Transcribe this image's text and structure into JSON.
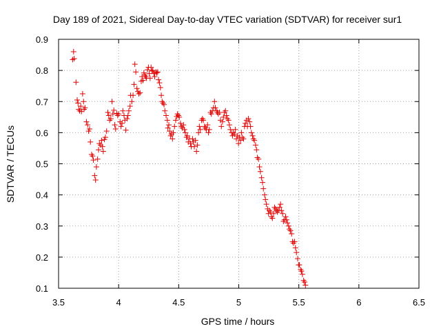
{
  "chart_data": {
    "type": "scatter",
    "title": "Day 189 of 2021, Sidereal Day-to-day VTEC variation (SDTVAR) for receiver sur1",
    "xlabel": "GPS time / hours",
    "ylabel": "SDTVAR / TECUs",
    "xlim": [
      3.5,
      6.5
    ],
    "ylim": [
      0.1,
      0.9
    ],
    "xticks": [
      3.5,
      4,
      4.5,
      5,
      5.5,
      6,
      6.5
    ],
    "yticks": [
      0.1,
      0.2,
      0.3,
      0.4,
      0.5,
      0.6,
      0.7,
      0.8,
      0.9
    ],
    "xtick_labels": [
      "3.5",
      "4",
      "4.5",
      "5",
      "5.5",
      "6",
      "6.5"
    ],
    "ytick_labels": [
      "0.1",
      "0.2",
      "0.3",
      "0.4",
      "0.5",
      "0.6",
      "0.7",
      "0.8",
      "0.9"
    ],
    "grid": true,
    "marker": "+",
    "color": "#e00000",
    "series": [
      {
        "name": "SDTVAR",
        "points": [
          [
            3.617,
            0.835
          ],
          [
            3.625,
            0.86
          ],
          [
            3.63,
            0.838
          ],
          [
            3.645,
            0.762
          ],
          [
            3.655,
            0.705
          ],
          [
            3.662,
            0.695
          ],
          [
            3.668,
            0.675
          ],
          [
            3.675,
            0.67
          ],
          [
            3.685,
            0.685
          ],
          [
            3.69,
            0.668
          ],
          [
            3.7,
            0.725
          ],
          [
            3.708,
            0.7
          ],
          [
            3.712,
            0.675
          ],
          [
            3.72,
            0.68
          ],
          [
            3.732,
            0.635
          ],
          [
            3.742,
            0.625
          ],
          [
            3.75,
            0.605
          ],
          [
            3.758,
            0.612
          ],
          [
            3.765,
            0.57
          ],
          [
            3.775,
            0.53
          ],
          [
            3.783,
            0.525
          ],
          [
            3.79,
            0.512
          ],
          [
            3.8,
            0.462
          ],
          [
            3.808,
            0.448
          ],
          [
            3.815,
            0.49
          ],
          [
            3.825,
            0.515
          ],
          [
            3.833,
            0.545
          ],
          [
            3.84,
            0.565
          ],
          [
            3.85,
            0.56
          ],
          [
            3.858,
            0.575
          ],
          [
            3.865,
            0.555
          ],
          [
            3.872,
            0.54
          ],
          [
            3.882,
            0.578
          ],
          [
            3.89,
            0.585
          ],
          [
            3.9,
            0.605
          ],
          [
            3.91,
            0.665
          ],
          [
            3.918,
            0.655
          ],
          [
            3.925,
            0.64
          ],
          [
            3.935,
            0.645
          ],
          [
            3.945,
            0.7
          ],
          [
            3.952,
            0.66
          ],
          [
            3.96,
            0.672
          ],
          [
            3.968,
            0.625
          ],
          [
            3.975,
            0.612
          ],
          [
            3.985,
            0.662
          ],
          [
            3.992,
            0.655
          ],
          [
            4.0,
            0.66
          ],
          [
            4.012,
            0.635
          ],
          [
            4.02,
            0.62
          ],
          [
            4.028,
            0.63
          ],
          [
            4.035,
            0.67
          ],
          [
            4.045,
            0.655
          ],
          [
            4.052,
            0.64
          ],
          [
            4.06,
            0.608
          ],
          [
            4.07,
            0.645
          ],
          [
            4.078,
            0.655
          ],
          [
            4.085,
            0.67
          ],
          [
            4.095,
            0.685
          ],
          [
            4.1,
            0.72
          ],
          [
            4.11,
            0.7
          ],
          [
            4.12,
            0.72
          ],
          [
            4.128,
            0.755
          ],
          [
            4.135,
            0.82
          ],
          [
            4.143,
            0.795
          ],
          [
            4.152,
            0.742
          ],
          [
            4.16,
            0.732
          ],
          [
            4.168,
            0.725
          ],
          [
            4.178,
            0.728
          ],
          [
            4.188,
            0.765
          ],
          [
            4.195,
            0.78
          ],
          [
            4.203,
            0.768
          ],
          [
            4.21,
            0.792
          ],
          [
            4.218,
            0.785
          ],
          [
            4.225,
            0.78
          ],
          [
            4.232,
            0.775
          ],
          [
            4.24,
            0.802
          ],
          [
            4.248,
            0.81
          ],
          [
            4.255,
            0.79
          ],
          [
            4.262,
            0.775
          ],
          [
            4.27,
            0.81
          ],
          [
            4.278,
            0.798
          ],
          [
            4.285,
            0.8
          ],
          [
            4.293,
            0.79
          ],
          [
            4.3,
            0.78
          ],
          [
            4.31,
            0.795
          ],
          [
            4.318,
            0.792
          ],
          [
            4.325,
            0.795
          ],
          [
            4.332,
            0.77
          ],
          [
            4.34,
            0.76
          ],
          [
            4.348,
            0.745
          ],
          [
            4.355,
            0.72
          ],
          [
            4.362,
            0.7
          ],
          [
            4.37,
            0.695
          ],
          [
            4.378,
            0.69
          ],
          [
            4.385,
            0.67
          ],
          [
            4.395,
            0.655
          ],
          [
            4.405,
            0.64
          ],
          [
            4.41,
            0.615
          ],
          [
            4.418,
            0.625
          ],
          [
            4.425,
            0.605
          ],
          [
            4.433,
            0.59
          ],
          [
            4.44,
            0.595
          ],
          [
            4.448,
            0.58
          ],
          [
            4.455,
            0.6
          ],
          [
            4.465,
            0.62
          ],
          [
            4.475,
            0.64
          ],
          [
            4.483,
            0.652
          ],
          [
            4.49,
            0.66
          ],
          [
            4.498,
            0.655
          ],
          [
            4.505,
            0.65
          ],
          [
            4.515,
            0.63
          ],
          [
            4.522,
            0.62
          ],
          [
            4.53,
            0.615
          ],
          [
            4.54,
            0.625
          ],
          [
            4.548,
            0.61
          ],
          [
            4.555,
            0.6
          ],
          [
            4.565,
            0.585
          ],
          [
            4.572,
            0.59
          ],
          [
            4.58,
            0.57
          ],
          [
            4.59,
            0.58
          ],
          [
            4.598,
            0.565
          ],
          [
            4.605,
            0.555
          ],
          [
            4.615,
            0.58
          ],
          [
            4.622,
            0.57
          ],
          [
            4.63,
            0.555
          ],
          [
            4.64,
            0.575
          ],
          [
            4.648,
            0.54
          ],
          [
            4.655,
            0.56
          ],
          [
            4.665,
            0.6
          ],
          [
            4.672,
            0.62
          ],
          [
            4.68,
            0.61
          ],
          [
            4.69,
            0.64
          ],
          [
            4.698,
            0.645
          ],
          [
            4.705,
            0.64
          ],
          [
            4.715,
            0.62
          ],
          [
            4.722,
            0.615
          ],
          [
            4.73,
            0.61
          ],
          [
            4.74,
            0.625
          ],
          [
            4.748,
            0.6
          ],
          [
            4.755,
            0.61
          ],
          [
            4.765,
            0.665
          ],
          [
            4.772,
            0.66
          ],
          [
            4.78,
            0.67
          ],
          [
            4.79,
            0.68
          ],
          [
            4.798,
            0.7
          ],
          [
            4.805,
            0.68
          ],
          [
            4.815,
            0.67
          ],
          [
            4.822,
            0.665
          ],
          [
            4.83,
            0.66
          ],
          [
            4.84,
            0.665
          ],
          [
            4.848,
            0.64
          ],
          [
            4.855,
            0.62
          ],
          [
            4.865,
            0.635
          ],
          [
            4.872,
            0.65
          ],
          [
            4.88,
            0.665
          ],
          [
            4.89,
            0.67
          ],
          [
            4.898,
            0.655
          ],
          [
            4.905,
            0.645
          ],
          [
            4.915,
            0.64
          ],
          [
            4.922,
            0.625
          ],
          [
            4.93,
            0.61
          ],
          [
            4.94,
            0.6
          ],
          [
            4.948,
            0.59
          ],
          [
            4.955,
            0.6
          ],
          [
            4.965,
            0.595
          ],
          [
            4.972,
            0.61
          ],
          [
            4.98,
            0.58
          ],
          [
            4.99,
            0.59
          ],
          [
            4.998,
            0.565
          ],
          [
            5.005,
            0.585
          ],
          [
            5.015,
            0.575
          ],
          [
            5.022,
            0.6
          ],
          [
            5.03,
            0.585
          ],
          [
            5.04,
            0.58
          ],
          [
            5.048,
            0.62
          ],
          [
            5.055,
            0.63
          ],
          [
            5.065,
            0.64
          ],
          [
            5.072,
            0.62
          ],
          [
            5.08,
            0.645
          ],
          [
            5.09,
            0.635
          ],
          [
            5.098,
            0.62
          ],
          [
            5.105,
            0.6
          ],
          [
            5.115,
            0.59
          ],
          [
            5.122,
            0.58
          ],
          [
            5.13,
            0.575
          ],
          [
            5.14,
            0.56
          ],
          [
            5.148,
            0.545
          ],
          [
            5.155,
            0.52
          ],
          [
            5.165,
            0.515
          ],
          [
            5.172,
            0.49
          ],
          [
            5.18,
            0.475
          ],
          [
            5.19,
            0.455
          ],
          [
            5.198,
            0.44
          ],
          [
            5.205,
            0.42
          ],
          [
            5.215,
            0.4
          ],
          [
            5.222,
            0.385
          ],
          [
            5.23,
            0.37
          ],
          [
            5.24,
            0.355
          ],
          [
            5.248,
            0.34
          ],
          [
            5.255,
            0.35
          ],
          [
            5.265,
            0.345
          ],
          [
            5.272,
            0.33
          ],
          [
            5.28,
            0.325
          ],
          [
            5.29,
            0.34
          ],
          [
            5.298,
            0.36
          ],
          [
            5.305,
            0.355
          ],
          [
            5.315,
            0.35
          ],
          [
            5.322,
            0.345
          ],
          [
            5.33,
            0.35
          ],
          [
            5.34,
            0.36
          ],
          [
            5.348,
            0.37
          ],
          [
            5.355,
            0.35
          ],
          [
            5.365,
            0.34
          ],
          [
            5.372,
            0.315
          ],
          [
            5.38,
            0.32
          ],
          [
            5.39,
            0.33
          ],
          [
            5.398,
            0.32
          ],
          [
            5.405,
            0.31
          ],
          [
            5.415,
            0.3
          ],
          [
            5.422,
            0.29
          ],
          [
            5.43,
            0.285
          ],
          [
            5.44,
            0.275
          ],
          [
            5.448,
            0.25
          ],
          [
            5.455,
            0.245
          ],
          [
            5.465,
            0.25
          ],
          [
            5.472,
            0.23
          ],
          [
            5.48,
            0.215
          ],
          [
            5.49,
            0.195
          ],
          [
            5.498,
            0.175
          ],
          [
            5.505,
            0.175
          ],
          [
            5.515,
            0.16
          ],
          [
            5.522,
            0.155
          ],
          [
            5.53,
            0.145
          ],
          [
            5.54,
            0.125
          ],
          [
            5.548,
            0.12
          ],
          [
            5.555,
            0.11
          ]
        ]
      }
    ]
  }
}
